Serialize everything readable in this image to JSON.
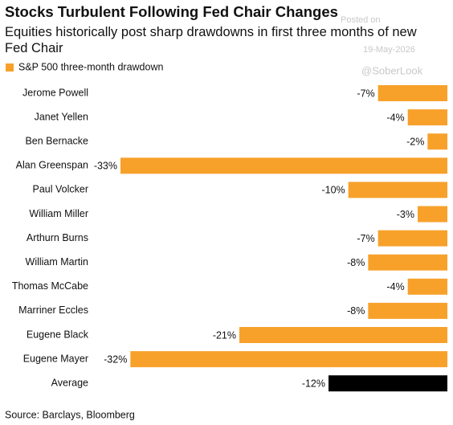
{
  "chart_data": {
    "type": "hbar",
    "title": "Stocks Turbulent Following Fed Chair Changes",
    "subtitle": "Equities historically post sharp drawdowns in first three months of new Fed Chair",
    "legend": "S&P 500 three-month drawdown",
    "color": "#f7a12b",
    "categories": [
      "Jerome Powell",
      "Janet Yellen",
      "Ben Bernacke",
      "Alan Greenspan",
      "Paul Volcker",
      "William Miller",
      "Arthurn Burns",
      "William Martin",
      "Thomas McCabe",
      "Marriner Eccles",
      "Eugene Black",
      "Eugene Mayer",
      "Average"
    ],
    "values": [
      -7,
      -4,
      -2,
      -33,
      -10,
      -3,
      -7,
      -8,
      -4,
      -8,
      -21,
      -32,
      -12
    ],
    "value_labels": [
      "-7%",
      "-4%",
      "-2%",
      "-33%",
      "-10%",
      "-3%",
      "-7%",
      "-8%",
      "-4%",
      "-8%",
      "-21%",
      "-32%",
      "-12%"
    ],
    "colors": [
      "#f7a12b",
      "#f7a12b",
      "#f7a12b",
      "#f7a12b",
      "#f7a12b",
      "#f7a12b",
      "#f7a12b",
      "#f7a12b",
      "#f7a12b",
      "#f7a12b",
      "#f7a12b",
      "#f7a12b",
      "#000000"
    ],
    "xlim": [
      -33,
      0
    ],
    "source": "Source: Barclays, Bloomberg",
    "watermark": [
      "Posted on",
      "19-May-2026",
      "@SoberLook"
    ]
  }
}
